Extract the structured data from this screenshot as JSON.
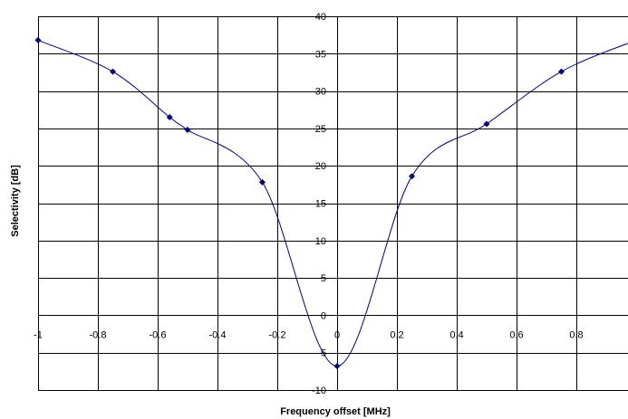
{
  "chart_data": {
    "type": "scatter",
    "title": "",
    "xlabel": "Frequency offset [MHz]",
    "ylabel": "Selectivity [dB]",
    "xlim": [
      -1,
      1
    ],
    "ylim": [
      -10,
      40
    ],
    "x_ticks": [
      -1,
      -0.8,
      -0.6,
      -0.4,
      -0.2,
      0,
      0.2,
      0.4,
      0.6,
      0.8
    ],
    "x_tick_labels": [
      "-1",
      "-0.8",
      "-0.6",
      "-0.4",
      "-0.2",
      "0",
      "0.2",
      "0.4",
      "0.6",
      "0.8"
    ],
    "y_ticks": [
      -10,
      -5,
      0,
      5,
      10,
      15,
      20,
      25,
      30,
      35,
      40
    ],
    "y_tick_labels": [
      "-10",
      "-5",
      "0",
      "5",
      "10",
      "15",
      "20",
      "25",
      "30",
      "35",
      "40"
    ],
    "grid": true,
    "series": [
      {
        "color": "#00007f",
        "marker": "diamond",
        "line": "smooth",
        "x": [
          -1,
          -0.75,
          -0.56,
          -0.5,
          -0.25,
          0,
          0.25,
          0.5,
          0.75,
          1
        ],
        "y": [
          36.8,
          32.6,
          26.5,
          24.8,
          17.8,
          -6.8,
          18.6,
          25.6,
          32.6,
          36.8
        ]
      }
    ]
  }
}
